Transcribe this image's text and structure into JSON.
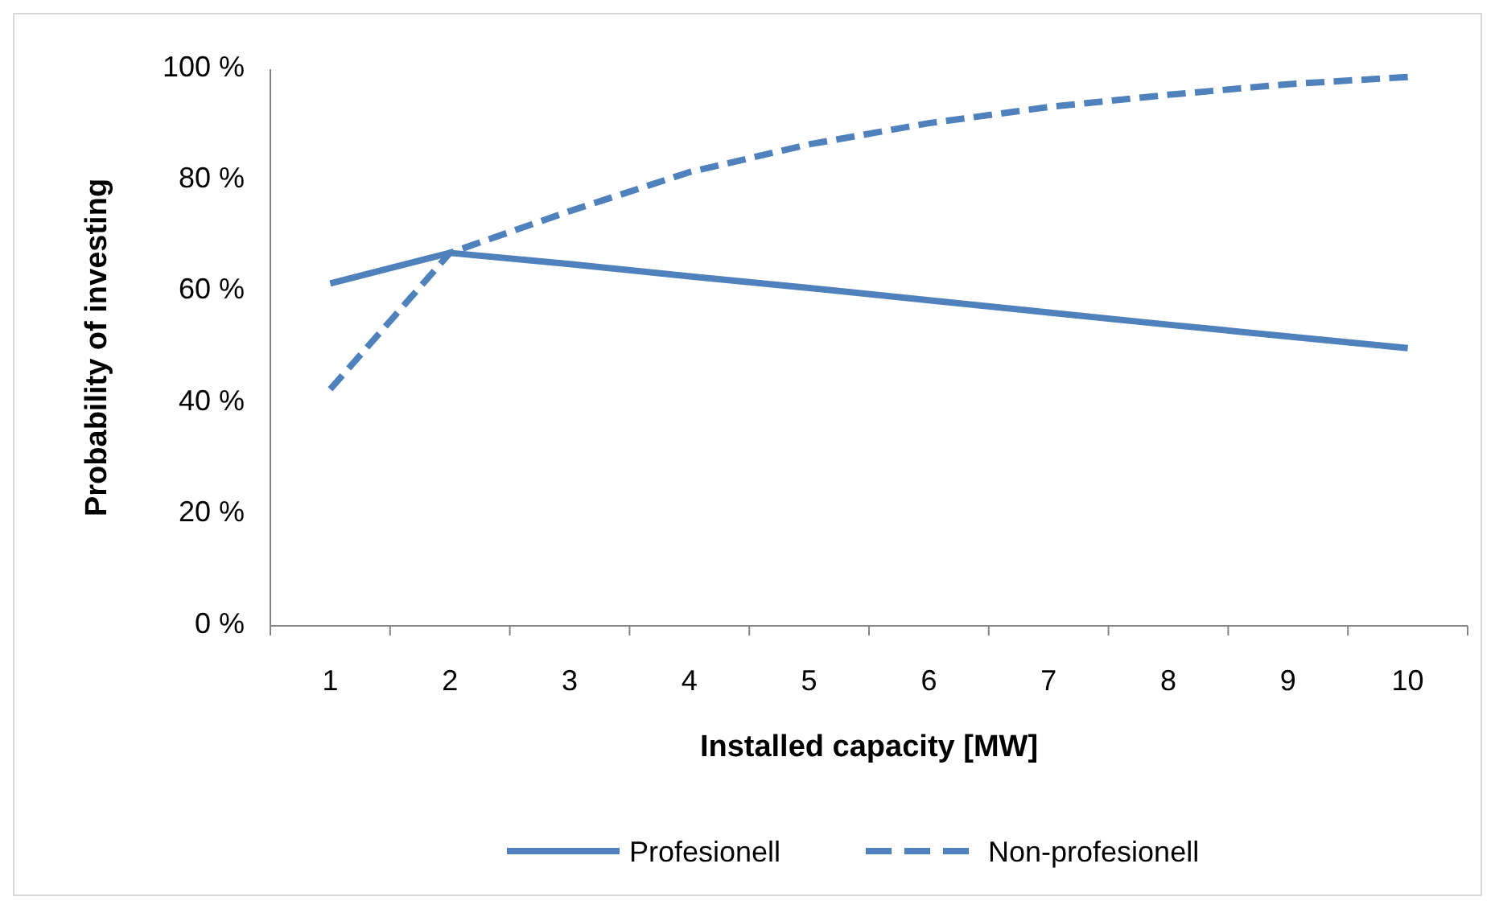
{
  "chart_data": {
    "type": "line",
    "xlabel": "Installed capacity [MW]",
    "ylabel": "Probability of investing",
    "categories": [
      "1",
      "2",
      "3",
      "4",
      "5",
      "6",
      "7",
      "8",
      "9",
      "10"
    ],
    "series": [
      {
        "name": "Profesionell",
        "color": "#4f81bd",
        "line_style": "solid",
        "values": [
          61.5,
          67,
          65,
          62.8,
          60.7,
          58.5,
          56.3,
          54.1,
          52,
          49.9
        ]
      },
      {
        "name": "Non-profesionell",
        "color": "#4f81bd",
        "line_style": "dashed",
        "values": [
          42.5,
          67,
          74.5,
          81.5,
          86.5,
          90.3,
          93.2,
          95.4,
          97.3,
          98.6
        ]
      }
    ],
    "ylim": [
      0,
      100
    ],
    "yticks": [
      {
        "value": 0,
        "label": "0 %"
      },
      {
        "value": 20,
        "label": "20 %"
      },
      {
        "value": 40,
        "label": "40 %"
      },
      {
        "value": 60,
        "label": "60 %"
      },
      {
        "value": 80,
        "label": "80 %"
      },
      {
        "value": 100,
        "label": "100 %"
      }
    ],
    "grid": false,
    "legend": "bottom",
    "marker": "none"
  }
}
